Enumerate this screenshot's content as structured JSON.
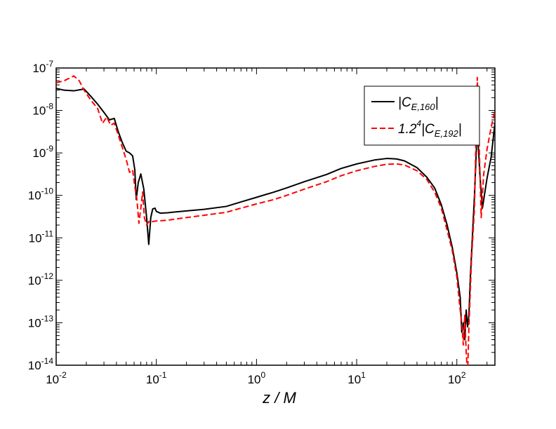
{
  "chart_data": {
    "type": "line",
    "title": "",
    "xlabel": "z / M",
    "ylabel": "",
    "xscale": "log",
    "yscale": "log",
    "xlim": [
      0.01,
      240
    ],
    "ylim": [
      1e-14,
      1e-07
    ],
    "grid": false,
    "legend_position": "top-right",
    "x_ticks": [
      {
        "value": 0.01,
        "base": "10",
        "exp": "-2"
      },
      {
        "value": 0.1,
        "base": "10",
        "exp": "-1"
      },
      {
        "value": 1,
        "base": "10",
        "exp": "0"
      },
      {
        "value": 10,
        "base": "10",
        "exp": "1"
      },
      {
        "value": 100,
        "base": "10",
        "exp": "2"
      }
    ],
    "y_ticks": [
      {
        "value": 1e-07,
        "base": "10",
        "exp": "-7"
      },
      {
        "value": 1e-08,
        "base": "10",
        "exp": "-8"
      },
      {
        "value": 1e-09,
        "base": "10",
        "exp": "-9"
      },
      {
        "value": 1e-10,
        "base": "10",
        "exp": "-10"
      },
      {
        "value": 1e-11,
        "base": "10",
        "exp": "-11"
      },
      {
        "value": 1e-12,
        "base": "10",
        "exp": "-12"
      },
      {
        "value": 1e-13,
        "base": "10",
        "exp": "-13"
      },
      {
        "value": 1e-14,
        "base": "10",
        "exp": "-14"
      }
    ],
    "series": [
      {
        "name": "|C_E,160|",
        "legend": {
          "pre": "|",
          "main": "C",
          "sub": "E,160",
          "sup": "",
          "post": "|"
        },
        "color": "#000000",
        "dash": "solid",
        "x": [
          0.01,
          0.012,
          0.015,
          0.019,
          0.022,
          0.026,
          0.03,
          0.034,
          0.038,
          0.042,
          0.046,
          0.05,
          0.054,
          0.058,
          0.061,
          0.063,
          0.066,
          0.07,
          0.075,
          0.08,
          0.084,
          0.088,
          0.092,
          0.097,
          0.1,
          0.11,
          0.13,
          0.16,
          0.2,
          0.3,
          0.5,
          0.7,
          1.0,
          1.5,
          2,
          3,
          5,
          7,
          10,
          15,
          20,
          25,
          30,
          40,
          50,
          60,
          70,
          80,
          90,
          100,
          108,
          112,
          116,
          120,
          124,
          128,
          132,
          136,
          140,
          150,
          160,
          170,
          180,
          200,
          220,
          240
        ],
        "y": [
          3.3e-08,
          3e-08,
          2.9e-08,
          3.2e-08,
          2.2e-08,
          1.4e-08,
          9e-09,
          6e-09,
          6.5e-09,
          3e-09,
          1.7e-09,
          1.1e-09,
          1e-09,
          8.5e-10,
          4e-10,
          8e-11,
          2e-10,
          3.2e-10,
          1.4e-10,
          3e-11,
          7e-12,
          3e-11,
          4.8e-11,
          5e-11,
          4.2e-11,
          3.8e-11,
          3.9e-11,
          4.1e-11,
          4.3e-11,
          4.7e-11,
          5.5e-11,
          7e-11,
          9e-11,
          1.2e-10,
          1.5e-10,
          2.1e-10,
          3.1e-10,
          4.3e-10,
          5.5e-10,
          6.8e-10,
          7.4e-10,
          7.2e-10,
          6.5e-10,
          4.5e-10,
          2.7e-10,
          1.5e-10,
          6e-11,
          2e-11,
          6e-12,
          1.5e-12,
          4e-13,
          6e-14,
          1e-13,
          4e-14,
          2e-13,
          8e-14,
          1.5e-13,
          1e-12,
          4e-12,
          1e-10,
          4e-09,
          3e-10,
          5e-11,
          2.5e-10,
          8e-10,
          5e-09
        ]
      },
      {
        "name": "1.2^4|C_E,192|",
        "legend": {
          "pre": "1.2",
          "main": "|C",
          "sub": "E,192",
          "sup": "4",
          "post": "|"
        },
        "color": "#ff0000",
        "dash": "dashed",
        "x": [
          0.01,
          0.012,
          0.015,
          0.017,
          0.019,
          0.022,
          0.026,
          0.029,
          0.032,
          0.035,
          0.038,
          0.042,
          0.046,
          0.05,
          0.054,
          0.058,
          0.061,
          0.064,
          0.067,
          0.07,
          0.073,
          0.076,
          0.08,
          0.085,
          0.09,
          0.1,
          0.13,
          0.16,
          0.2,
          0.3,
          0.5,
          0.7,
          1.0,
          1.5,
          2,
          3,
          5,
          7,
          10,
          15,
          20,
          25,
          30,
          40,
          50,
          60,
          70,
          80,
          90,
          100,
          108,
          112,
          116,
          120,
          124,
          128,
          132,
          136,
          140,
          150,
          160,
          168,
          175,
          185,
          200,
          220,
          240
        ],
        "y": [
          4.5e-08,
          5e-08,
          6.5e-08,
          5e-08,
          3e-08,
          1.8e-08,
          1.1e-08,
          5e-09,
          7e-09,
          4.5e-09,
          5e-09,
          2.5e-09,
          1.3e-09,
          7e-10,
          3.5e-10,
          4e-10,
          1.6e-10,
          8e-11,
          2.2e-11,
          5e-11,
          1.2e-10,
          3e-11,
          2e-11,
          2.5e-11,
          2.4e-11,
          2.5e-11,
          2.6e-11,
          2.8e-11,
          3e-11,
          3.4e-11,
          4e-11,
          5e-11,
          6.3e-11,
          8e-11,
          1e-10,
          1.4e-10,
          2.1e-10,
          2.9e-10,
          3.8e-10,
          4.8e-10,
          5.4e-10,
          5.5e-10,
          5.2e-10,
          3.8e-10,
          2.4e-10,
          1.2e-10,
          5e-11,
          1.5e-11,
          5e-12,
          1.2e-12,
          2e-13,
          1e-13,
          3e-14,
          1.5e-13,
          2e-14,
          6e-15,
          8e-14,
          5e-13,
          3e-12,
          5e-11,
          6e-08,
          1e-09,
          3e-11,
          3e-10,
          1.2e-09,
          4e-09,
          1e-08
        ]
      }
    ]
  }
}
